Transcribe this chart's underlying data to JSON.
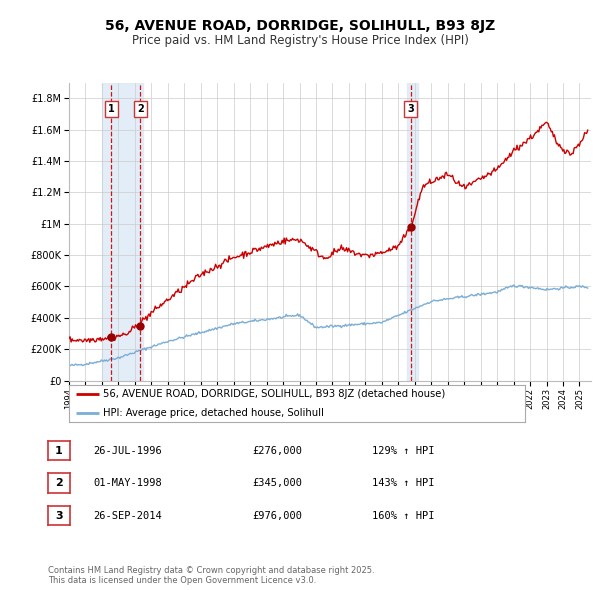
{
  "title": "56, AVENUE ROAD, DORRIDGE, SOLIHULL, B93 8JZ",
  "subtitle": "Price paid vs. HM Land Registry's House Price Index (HPI)",
  "background_color": "#ffffff",
  "plot_bg_color": "#ffffff",
  "grid_color": "#cccccc",
  "hpi_line_color": "#7aaed6",
  "price_line_color": "#cc0000",
  "sale_marker_color": "#990000",
  "transaction_shade_color": "#dce9f5",
  "dashed_line_color": "#cc0000",
  "ylim": [
    0,
    1900000
  ],
  "yticks": [
    0,
    200000,
    400000,
    600000,
    800000,
    1000000,
    1200000,
    1400000,
    1600000,
    1800000
  ],
  "ytick_labels": [
    "£0",
    "£200K",
    "£400K",
    "£600K",
    "£800K",
    "£1M",
    "£1.2M",
    "£1.4M",
    "£1.6M",
    "£1.8M"
  ],
  "xlim_start": 1994.0,
  "xlim_end": 2025.7,
  "transactions": [
    {
      "label": "1",
      "date_num": 1996.57,
      "price": 276000
    },
    {
      "label": "2",
      "date_num": 1998.33,
      "price": 345000
    },
    {
      "label": "3",
      "date_num": 2014.74,
      "price": 976000
    }
  ],
  "legend_price_label": "56, AVENUE ROAD, DORRIDGE, SOLIHULL, B93 8JZ (detached house)",
  "legend_hpi_label": "HPI: Average price, detached house, Solihull",
  "table_rows": [
    {
      "num": "1",
      "date": "26-JUL-1996",
      "price": "£276,000",
      "hpi": "129% ↑ HPI"
    },
    {
      "num": "2",
      "date": "01-MAY-1998",
      "price": "£345,000",
      "hpi": "143% ↑ HPI"
    },
    {
      "num": "3",
      "date": "26-SEP-2014",
      "price": "£976,000",
      "hpi": "160% ↑ HPI"
    }
  ],
  "footer_text": "Contains HM Land Registry data © Crown copyright and database right 2025.\nThis data is licensed under the Open Government Licence v3.0.",
  "shade_regions": [
    {
      "x_start": 1996.0,
      "x_end": 1998.5
    },
    {
      "x_start": 2014.5,
      "x_end": 2015.2
    }
  ]
}
